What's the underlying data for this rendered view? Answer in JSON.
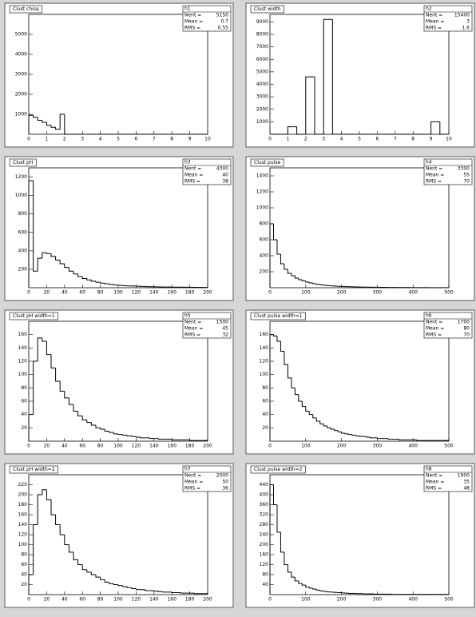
{
  "chart_data": [
    {
      "type": "histogram",
      "title": "Clust chisq",
      "stats": {
        "name": "h1",
        "rows": [
          {
            "label": "Nent =",
            "value": 5150
          },
          {
            "label": "Mean =",
            "value": 0.7
          },
          {
            "label": "RMS =",
            "value": 0.55
          }
        ]
      },
      "bins": [
        0,
        0.25,
        0.5,
        0.75,
        1,
        1.25,
        1.5,
        1.75,
        2,
        2.25,
        2.5,
        2.75,
        3,
        3.25,
        3.5,
        3.75,
        4,
        4.25,
        4.5,
        4.75,
        5,
        5.25,
        5.5,
        5.75,
        6,
        6.25,
        6.5,
        6.75,
        7,
        7.25,
        7.5,
        7.75,
        8,
        8.25,
        8.5,
        8.75,
        9,
        9.25,
        9.5,
        9.75,
        10
      ],
      "values": [
        950,
        850,
        700,
        600,
        450,
        350,
        250,
        1000,
        0,
        0,
        0,
        0,
        0,
        0,
        0,
        0,
        0,
        0,
        0,
        0,
        0,
        0,
        0,
        0,
        0,
        0,
        0,
        0,
        0,
        0,
        0,
        0,
        0,
        0,
        0,
        0,
        0,
        0,
        0,
        0
      ],
      "xlim": [
        0,
        10
      ],
      "xticks": [
        0,
        1,
        2,
        3,
        4,
        5,
        6,
        7,
        8,
        9,
        10
      ],
      "ylim": [
        0,
        6000
      ],
      "yticks": [
        1000,
        2000,
        3000,
        4000,
        5000
      ],
      "color": "#000000"
    },
    {
      "type": "histogram",
      "title": "Clust width",
      "stats": {
        "name": "h2",
        "rows": [
          {
            "label": "Nent =",
            "value": 15400
          },
          {
            "label": "Mean =",
            "value": 3.0
          },
          {
            "label": "RMS =",
            "value": 1.6
          }
        ]
      },
      "bins": [
        0,
        0.5,
        1,
        1.5,
        2,
        2.5,
        3,
        3.5,
        4,
        4.5,
        5,
        5.5,
        6,
        6.5,
        7,
        7.5,
        8,
        8.5,
        9,
        9.5,
        10
      ],
      "values": [
        0,
        0,
        600,
        0,
        4600,
        0,
        9200,
        0,
        0,
        0,
        0,
        0,
        0,
        0,
        0,
        0,
        0,
        0,
        1000,
        0
      ],
      "xlim": [
        0,
        10
      ],
      "xticks": [
        0,
        1,
        2,
        3,
        4,
        5,
        6,
        7,
        8,
        9,
        10
      ],
      "ylim": [
        0,
        9600
      ],
      "yticks": [
        1000,
        2000,
        3000,
        4000,
        5000,
        6000,
        7000,
        8000,
        9000
      ],
      "color": "#000000"
    },
    {
      "type": "histogram",
      "title": "Clust pH",
      "stats": {
        "name": "h3",
        "rows": [
          {
            "label": "Nent =",
            "value": 4300
          },
          {
            "label": "Mean =",
            "value": 40
          },
          {
            "label": "RMS =",
            "value": 38
          }
        ]
      },
      "bins": [
        0,
        5,
        10,
        15,
        20,
        25,
        30,
        35,
        40,
        45,
        50,
        55,
        60,
        65,
        70,
        75,
        80,
        85,
        90,
        95,
        100,
        105,
        110,
        115,
        120,
        125,
        130,
        135,
        140,
        145,
        150,
        155,
        160,
        165,
        170,
        175,
        180,
        185,
        190,
        195,
        200
      ],
      "values": [
        1160,
        180,
        320,
        380,
        370,
        340,
        300,
        260,
        220,
        180,
        150,
        120,
        100,
        85,
        70,
        60,
        50,
        42,
        36,
        30,
        26,
        22,
        20,
        18,
        16,
        14,
        12,
        11,
        10,
        9,
        8,
        8,
        7,
        6,
        6,
        5,
        5,
        4,
        4,
        3
      ],
      "xlim": [
        0,
        200
      ],
      "xticks": [
        0,
        20,
        40,
        60,
        80,
        100,
        120,
        140,
        160,
        180,
        200
      ],
      "ylim": [
        0,
        1300
      ],
      "yticks": [
        200,
        400,
        600,
        800,
        1000,
        1200
      ],
      "color": "#000000"
    },
    {
      "type": "histogram",
      "title": "Clust pulse",
      "stats": {
        "name": "h4",
        "rows": [
          {
            "label": "Nent =",
            "value": 3300
          },
          {
            "label": "Mean =",
            "value": 55
          },
          {
            "label": "RMS =",
            "value": 70
          }
        ]
      },
      "bins": [
        0,
        10,
        20,
        30,
        40,
        50,
        60,
        70,
        80,
        90,
        100,
        110,
        120,
        130,
        140,
        150,
        160,
        170,
        180,
        190,
        200,
        210,
        220,
        230,
        240,
        250,
        260,
        270,
        280,
        290,
        300,
        310,
        320,
        330,
        340,
        350,
        360,
        370,
        380,
        390,
        400,
        410,
        420,
        430,
        440,
        450,
        460,
        470,
        480,
        490,
        500
      ],
      "values": [
        800,
        600,
        420,
        300,
        230,
        180,
        150,
        120,
        100,
        85,
        70,
        60,
        50,
        42,
        36,
        30,
        26,
        22,
        20,
        18,
        16,
        14,
        12,
        11,
        10,
        9,
        8,
        7,
        7,
        6,
        6,
        5,
        5,
        4,
        4,
        4,
        3,
        3,
        3,
        2,
        2,
        2,
        2,
        2,
        1,
        1,
        1,
        1,
        1,
        1
      ],
      "xlim": [
        0,
        500
      ],
      "xticks": [
        0,
        100,
        200,
        300,
        400,
        500
      ],
      "ylim": [
        0,
        1500
      ],
      "yticks": [
        200,
        400,
        600,
        800,
        1000,
        1200,
        1400
      ],
      "color": "#000000"
    },
    {
      "type": "histogram",
      "title": "Clust pH width=1",
      "stats": {
        "name": "h5",
        "rows": [
          {
            "label": "Nent =",
            "value": 1500
          },
          {
            "label": "Mean =",
            "value": 45
          },
          {
            "label": "RMS =",
            "value": 32
          }
        ]
      },
      "bins": [
        0,
        5,
        10,
        15,
        20,
        25,
        30,
        35,
        40,
        45,
        50,
        55,
        60,
        65,
        70,
        75,
        80,
        85,
        90,
        95,
        100,
        105,
        110,
        115,
        120,
        125,
        130,
        135,
        140,
        145,
        150,
        155,
        160,
        165,
        170,
        175,
        180,
        185,
        190,
        195,
        200
      ],
      "values": [
        40,
        120,
        155,
        150,
        130,
        110,
        90,
        75,
        65,
        55,
        45,
        38,
        32,
        28,
        24,
        20,
        18,
        15,
        13,
        11,
        10,
        9,
        8,
        7,
        6,
        5,
        5,
        4,
        4,
        3,
        3,
        3,
        2,
        2,
        2,
        2,
        1,
        1,
        1,
        1
      ],
      "xlim": [
        0,
        200
      ],
      "xticks": [
        0,
        20,
        40,
        60,
        80,
        100,
        120,
        140,
        160,
        180,
        200
      ],
      "ylim": [
        0,
        180
      ],
      "yticks": [
        20,
        40,
        60,
        80,
        100,
        120,
        140,
        160
      ],
      "color": "#000000"
    },
    {
      "type": "histogram",
      "title": "Clust pulse width=1",
      "stats": {
        "name": "h6",
        "rows": [
          {
            "label": "Nent =",
            "value": 1700
          },
          {
            "label": "Mean =",
            "value": 80
          },
          {
            "label": "RMS =",
            "value": 70
          }
        ]
      },
      "bins": [
        0,
        10,
        20,
        30,
        40,
        50,
        60,
        70,
        80,
        90,
        100,
        110,
        120,
        130,
        140,
        150,
        160,
        170,
        180,
        190,
        200,
        210,
        220,
        230,
        240,
        250,
        260,
        270,
        280,
        290,
        300,
        310,
        320,
        330,
        340,
        350,
        360,
        370,
        380,
        390,
        400,
        410,
        420,
        430,
        440,
        450,
        460,
        470,
        480,
        490,
        500
      ],
      "values": [
        160,
        158,
        150,
        135,
        115,
        95,
        80,
        70,
        60,
        52,
        45,
        40,
        35,
        30,
        26,
        23,
        20,
        18,
        16,
        14,
        12,
        11,
        10,
        9,
        8,
        7,
        7,
        6,
        5,
        5,
        4,
        4,
        4,
        3,
        3,
        3,
        2,
        2,
        2,
        2,
        2,
        1,
        1,
        1,
        1,
        1,
        1,
        1,
        1,
        1
      ],
      "xlim": [
        0,
        500
      ],
      "xticks": [
        0,
        100,
        200,
        300,
        400,
        500
      ],
      "ylim": [
        0,
        180
      ],
      "yticks": [
        20,
        40,
        60,
        80,
        100,
        120,
        140,
        160
      ],
      "color": "#000000"
    },
    {
      "type": "histogram",
      "title": "Clust pH width=2",
      "stats": {
        "name": "h7",
        "rows": [
          {
            "label": "Nent =",
            "value": 2000
          },
          {
            "label": "Mean =",
            "value": 50
          },
          {
            "label": "RMS =",
            "value": 36
          }
        ]
      },
      "bins": [
        0,
        5,
        10,
        15,
        20,
        25,
        30,
        35,
        40,
        45,
        50,
        55,
        60,
        65,
        70,
        75,
        80,
        85,
        90,
        95,
        100,
        105,
        110,
        115,
        120,
        125,
        130,
        135,
        140,
        145,
        150,
        155,
        160,
        165,
        170,
        175,
        180,
        185,
        190,
        195,
        200
      ],
      "values": [
        40,
        140,
        200,
        210,
        190,
        160,
        140,
        120,
        100,
        85,
        70,
        60,
        50,
        45,
        40,
        35,
        30,
        25,
        22,
        20,
        18,
        16,
        14,
        12,
        10,
        10,
        8,
        8,
        7,
        6,
        5,
        5,
        4,
        4,
        3,
        3,
        3,
        2,
        2,
        2
      ],
      "xlim": [
        0,
        200
      ],
      "xticks": [
        0,
        20,
        40,
        60,
        80,
        100,
        120,
        140,
        160,
        180,
        200
      ],
      "ylim": [
        0,
        240
      ],
      "yticks": [
        20,
        40,
        60,
        80,
        100,
        120,
        140,
        160,
        180,
        200,
        220
      ],
      "color": "#000000"
    },
    {
      "type": "histogram",
      "title": "Clust pulse width=2",
      "stats": {
        "name": "h8",
        "rows": [
          {
            "label": "Nent =",
            "value": 1900
          },
          {
            "label": "Mean =",
            "value": 35
          },
          {
            "label": "RMS =",
            "value": 48
          }
        ]
      },
      "bins": [
        0,
        10,
        20,
        30,
        40,
        50,
        60,
        70,
        80,
        90,
        100,
        110,
        120,
        130,
        140,
        150,
        160,
        170,
        180,
        190,
        200,
        210,
        220,
        230,
        240,
        250,
        260,
        270,
        280,
        290,
        300,
        310,
        320,
        330,
        340,
        350,
        360,
        370,
        380,
        390,
        400,
        410,
        420,
        430,
        440,
        450,
        460,
        470,
        480,
        490,
        500
      ],
      "values": [
        440,
        360,
        250,
        170,
        120,
        90,
        70,
        55,
        45,
        38,
        30,
        26,
        22,
        18,
        15,
        13,
        11,
        10,
        9,
        8,
        7,
        6,
        5,
        5,
        4,
        4,
        3,
        3,
        3,
        2,
        2,
        2,
        2,
        2,
        1,
        1,
        1,
        1,
        1,
        1,
        1,
        1,
        1,
        1,
        1,
        1,
        1,
        1,
        1,
        1
      ],
      "xlim": [
        0,
        500
      ],
      "xticks": [
        0,
        100,
        200,
        300,
        400,
        500
      ],
      "ylim": [
        0,
        480
      ],
      "yticks": [
        40,
        80,
        120,
        160,
        200,
        240,
        280,
        320,
        360,
        400,
        440
      ],
      "color": "#000000"
    }
  ]
}
